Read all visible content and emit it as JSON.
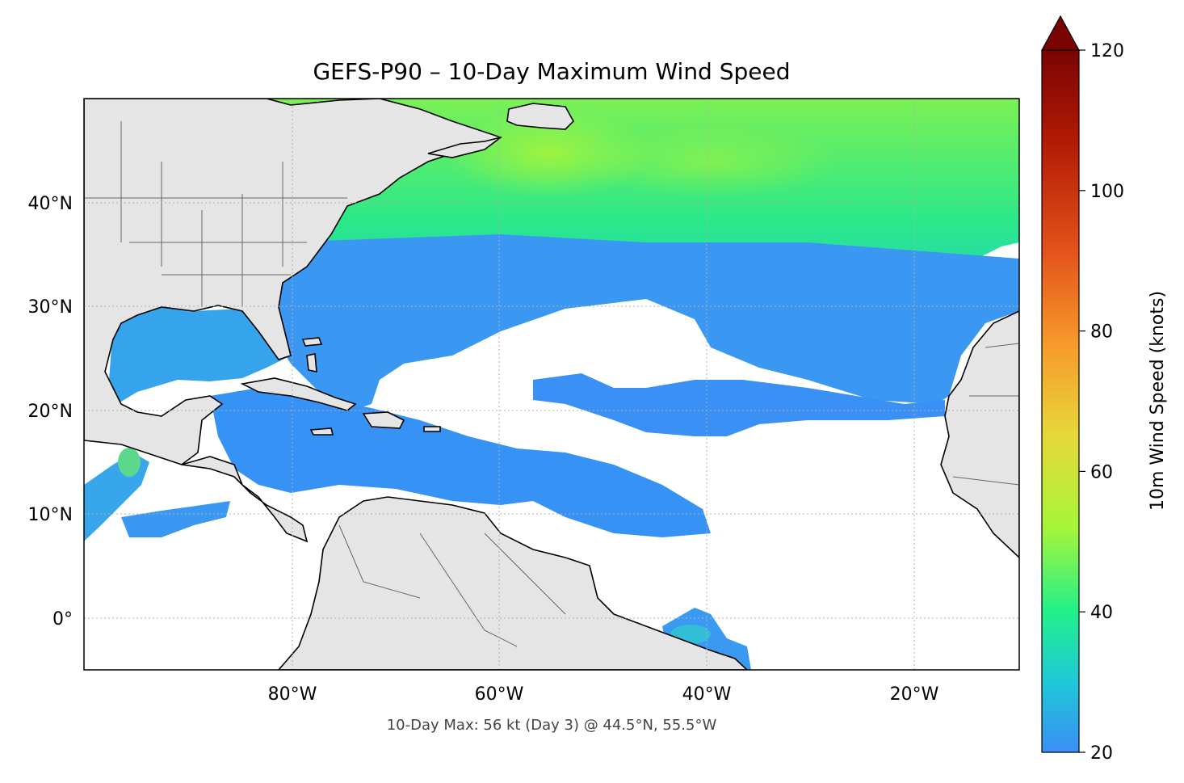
{
  "title": "GEFS-P90 – 10-Day Maximum Wind Speed",
  "footnote": "10-Day Max: 56 kt (Day 3) @ 44.5°N, 55.5°W",
  "map": {
    "lon_range": [
      -100,
      -10
    ],
    "lat_range": [
      -5,
      50
    ],
    "x_ticks": [
      {
        "lon": -80,
        "label": "80°W"
      },
      {
        "lon": -60,
        "label": "60°W"
      },
      {
        "lon": -40,
        "label": "40°W"
      },
      {
        "lon": -20,
        "label": "20°W"
      }
    ],
    "y_ticks": [
      {
        "lat": 40,
        "label": "40°N"
      },
      {
        "lat": 30,
        "label": "30°N"
      },
      {
        "lat": 20,
        "label": "20°N"
      },
      {
        "lat": 10,
        "label": "10°N"
      },
      {
        "lat": 0,
        "label": "0°"
      }
    ],
    "gridlines": true,
    "land_color": "#e5e5e5",
    "ocean_color": "#ffffff"
  },
  "colorbar": {
    "label": "10m Wind Speed (knots)",
    "range": [
      20,
      120
    ],
    "extend": "max",
    "ticks": [
      {
        "value": 20,
        "label": "20"
      },
      {
        "value": 40,
        "label": "40"
      },
      {
        "value": 60,
        "label": "60"
      },
      {
        "value": 80,
        "label": "80"
      },
      {
        "value": 100,
        "label": "100"
      },
      {
        "value": 120,
        "label": "120"
      }
    ],
    "colors": [
      "#3b8ef5",
      "#1fc8d8",
      "#22f08a",
      "#a6f53a",
      "#e6d83a",
      "#f79a2b",
      "#e2501a",
      "#b21a05",
      "#7a0403"
    ]
  },
  "max_location": {
    "lat": 44.5,
    "lon": -55.5,
    "value_kt": 56,
    "day": 3
  }
}
